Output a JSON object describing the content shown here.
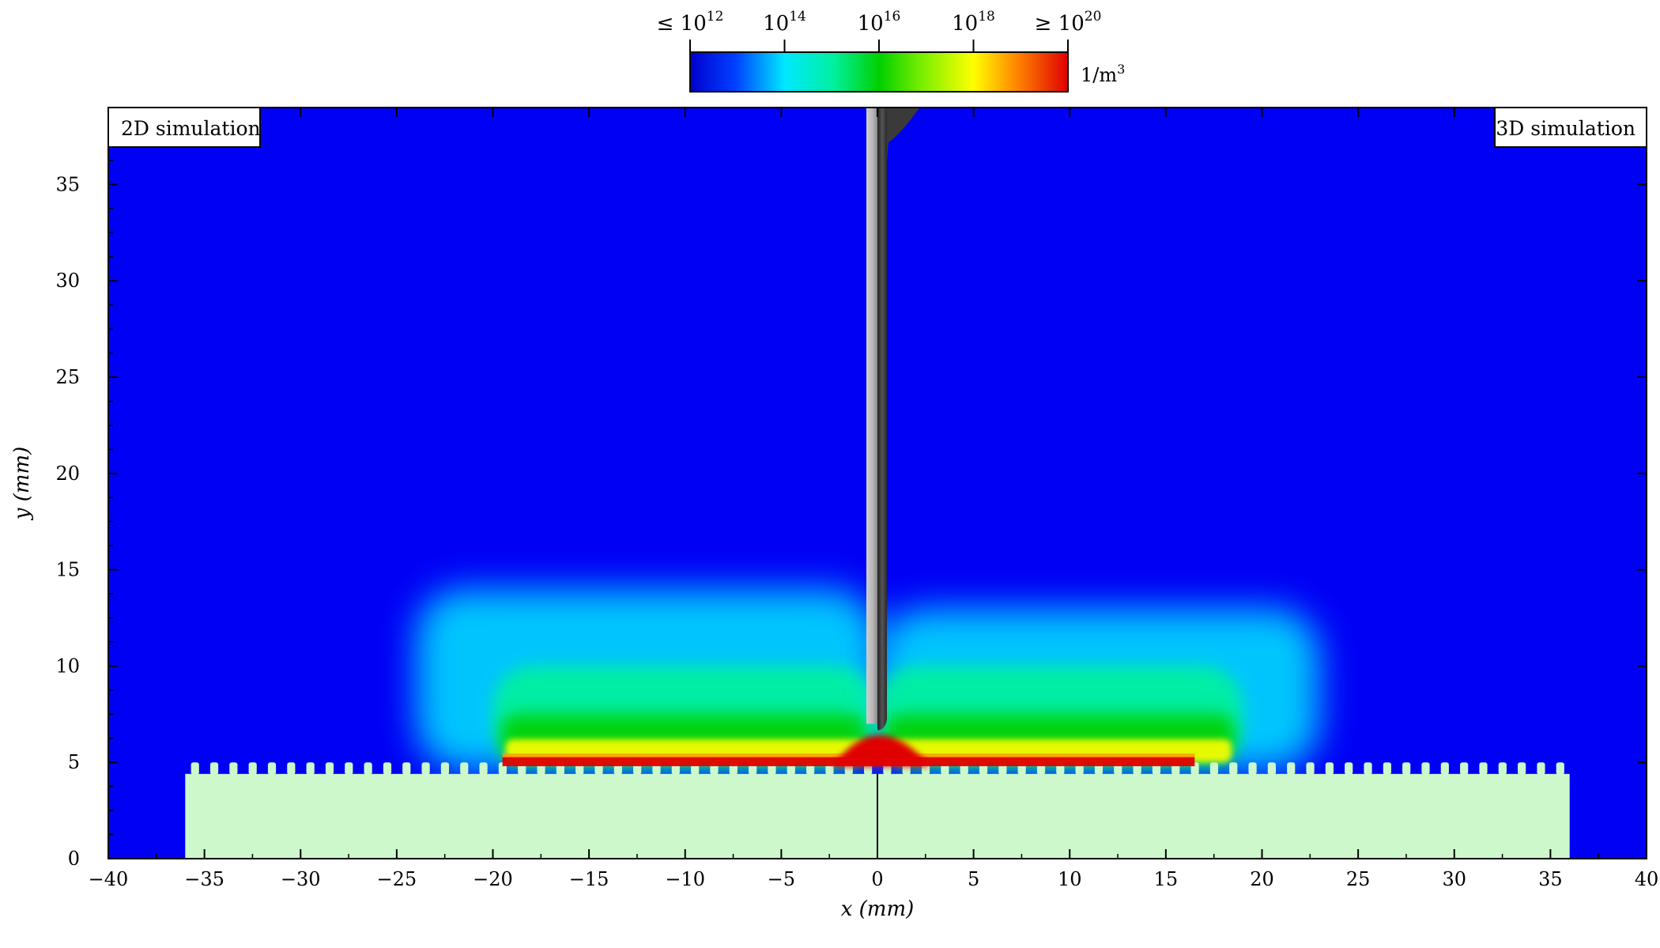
{
  "chart_data": {
    "type": "heatmap",
    "title": "",
    "xlabel": "x (mm)",
    "ylabel": "y (mm)",
    "xlim": [
      -40,
      40
    ],
    "ylim": [
      0,
      39
    ],
    "x_ticks": [
      -40,
      -35,
      -30,
      -25,
      -20,
      -15,
      -10,
      -5,
      0,
      5,
      10,
      15,
      20,
      25,
      30,
      35,
      40
    ],
    "x_tick_labels": [
      "−40",
      "−35",
      "−30",
      "−25",
      "−20",
      "−15",
      "−10",
      "−5",
      "0",
      "5",
      "10",
      "15",
      "20",
      "25",
      "30",
      "35",
      "40"
    ],
    "y_ticks": [
      0,
      5,
      10,
      15,
      20,
      25,
      30,
      35
    ],
    "y_tick_labels": [
      "0",
      "5",
      "10",
      "15",
      "20",
      "25",
      "30",
      "35"
    ],
    "panels": [
      {
        "label": "2D simulation",
        "position": "top-left",
        "x_range": [
          -40,
          0
        ]
      },
      {
        "label": "3D simulation",
        "position": "top-right",
        "x_range": [
          0,
          40
        ]
      }
    ],
    "colorbar": {
      "scale": "log",
      "unit": "1/m³",
      "unit_base": "1/m",
      "unit_sup": "3",
      "min": 1000000000000.0,
      "max": 1e+20,
      "colormap": "jet",
      "ticks": [
        {
          "value": 1000000000000.0,
          "prefix": "≤ ",
          "base": "10",
          "exp": "12"
        },
        {
          "value": 100000000000000.0,
          "prefix": "",
          "base": "10",
          "exp": "14"
        },
        {
          "value": 1e+16,
          "prefix": "",
          "base": "10",
          "exp": "16"
        },
        {
          "value": 1e+18,
          "prefix": "",
          "base": "10",
          "exp": "18"
        },
        {
          "value": 1e+20,
          "prefix": "≥ ",
          "base": "10",
          "exp": "20"
        }
      ]
    },
    "background_density": 1000000000000.0,
    "electrode": {
      "x": 0,
      "tip_y": 7.0,
      "top_y": 39
    },
    "substrate": {
      "x_range": [
        -36,
        36
      ],
      "top_y": 4.4,
      "tooth_top_y": 5.0,
      "tooth_pitch": 1.0,
      "color": "#ccf8cc"
    },
    "cloud_left": {
      "x_range": [
        -24,
        0
      ],
      "y_max": 14,
      "core_x_range": [
        -20,
        0
      ],
      "core_y_range": [
        5,
        10
      ]
    },
    "cloud_right": {
      "x_range": [
        0,
        23
      ],
      "y_max": 13,
      "core_x_range": [
        0,
        19
      ],
      "core_y_range": [
        5,
        10
      ]
    },
    "surface_layer": {
      "left_x_range": [
        -19.5,
        0
      ],
      "right_x_range": [
        0,
        16.5
      ],
      "y_range": [
        4.8,
        5.3
      ],
      "density": 1e+20
    },
    "tip_region": {
      "x_range": [
        -1.5,
        1.5
      ],
      "y_range": [
        4.8,
        7.2
      ],
      "density": 1e+20
    }
  }
}
